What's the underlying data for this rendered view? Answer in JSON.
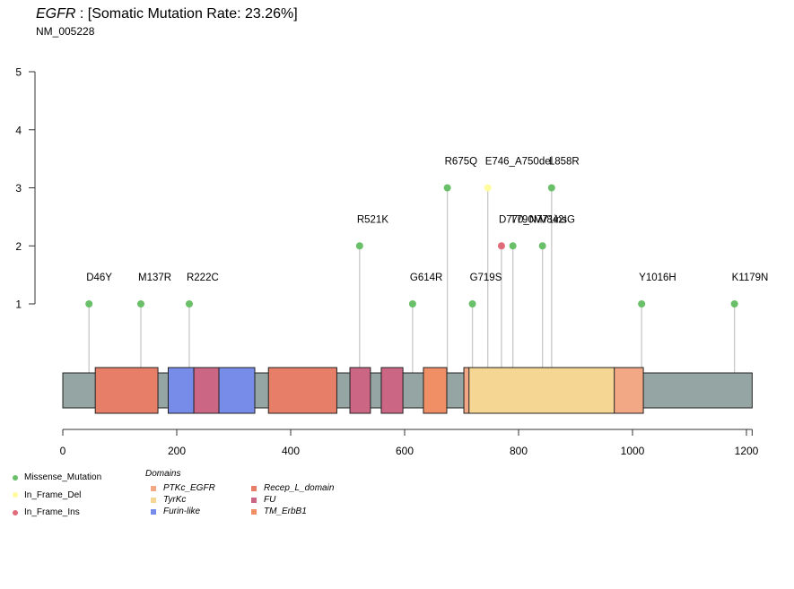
{
  "header": {
    "gene": "EGFR",
    "title_rest": " : [Somatic Mutation Rate: 23.26%]",
    "transcript": "NM_005228"
  },
  "chart_data": {
    "type": "lollipop",
    "title": "EGFR : [Somatic Mutation Rate: 23.26%]",
    "subtitle": "NM_005228",
    "protein_length": 1210,
    "xlim": [
      0,
      1210
    ],
    "ylim": [
      1,
      5
    ],
    "x_ticks": [
      0,
      200,
      400,
      600,
      800,
      1000,
      1200
    ],
    "y_ticks": [
      1,
      2,
      3,
      4,
      5
    ],
    "xlabel": "",
    "ylabel": "",
    "backbone_color": "#95a5a3",
    "mutations": [
      {
        "label": "D46Y",
        "pos": 46,
        "count": 1,
        "type": "Missense_Mutation"
      },
      {
        "label": "M137R",
        "pos": 137,
        "count": 1,
        "type": "Missense_Mutation"
      },
      {
        "label": "R222C",
        "pos": 222,
        "count": 1,
        "type": "Missense_Mutation"
      },
      {
        "label": "R521K",
        "pos": 521,
        "count": 2,
        "type": "Missense_Mutation"
      },
      {
        "label": "G614R",
        "pos": 614,
        "count": 1,
        "type": "Missense_Mutation"
      },
      {
        "label": "R675Q",
        "pos": 675,
        "count": 3,
        "type": "Missense_Mutation"
      },
      {
        "label": "G719S",
        "pos": 719,
        "count": 1,
        "type": "Missense_Mutation"
      },
      {
        "label": "E746_A750del",
        "pos": 746,
        "count": 3,
        "type": "In_Frame_Del"
      },
      {
        "label": "D770_N771insG",
        "pos": 770,
        "count": 2,
        "type": "In_Frame_Ins"
      },
      {
        "label": "T790M",
        "pos": 790,
        "count": 2,
        "type": "Missense_Mutation"
      },
      {
        "label": "V842I",
        "pos": 842,
        "count": 2,
        "type": "Missense_Mutation"
      },
      {
        "label": "L858R",
        "pos": 858,
        "count": 3,
        "type": "Missense_Mutation"
      },
      {
        "label": "Y1016H",
        "pos": 1016,
        "count": 1,
        "type": "Missense_Mutation"
      },
      {
        "label": "K1179N",
        "pos": 1179,
        "count": 1,
        "type": "Missense_Mutation"
      }
    ],
    "domains": [
      {
        "name": "Recep_L_domain",
        "start": 57,
        "end": 167
      },
      {
        "name": "Furin-like",
        "start": 185,
        "end": 230
      },
      {
        "name": "FU",
        "start": 230,
        "end": 274
      },
      {
        "name": "Furin-like",
        "start": 274,
        "end": 337
      },
      {
        "name": "Recep_L_domain",
        "start": 361,
        "end": 481
      },
      {
        "name": "FU",
        "start": 504,
        "end": 540
      },
      {
        "name": "FU",
        "start": 559,
        "end": 597
      },
      {
        "name": "TM_ErbB1",
        "start": 633,
        "end": 674
      },
      {
        "name": "PTKc_EGFR",
        "start": 704,
        "end": 1019
      },
      {
        "name": "TyrKc",
        "start": 713,
        "end": 968
      }
    ],
    "mutation_legend": [
      {
        "label": "Missense_Mutation",
        "color": "#6abf69"
      },
      {
        "label": "In_Frame_Del",
        "color": "#fffb9e"
      },
      {
        "label": "In_Frame_Ins",
        "color": "#e06c7a"
      }
    ],
    "domain_legend_title": "Domains",
    "domain_legend": [
      {
        "label": "PTKc_EGFR",
        "color": "#f2a785"
      },
      {
        "label": "Recep_L_domain",
        "color": "#e77e67"
      },
      {
        "label": "TyrKc",
        "color": "#f5d693"
      },
      {
        "label": "FU",
        "color": "#cc6685"
      },
      {
        "label": "Furin-like",
        "color": "#778be8"
      },
      {
        "label": "TM_ErbB1",
        "color": "#f08f66"
      }
    ]
  }
}
